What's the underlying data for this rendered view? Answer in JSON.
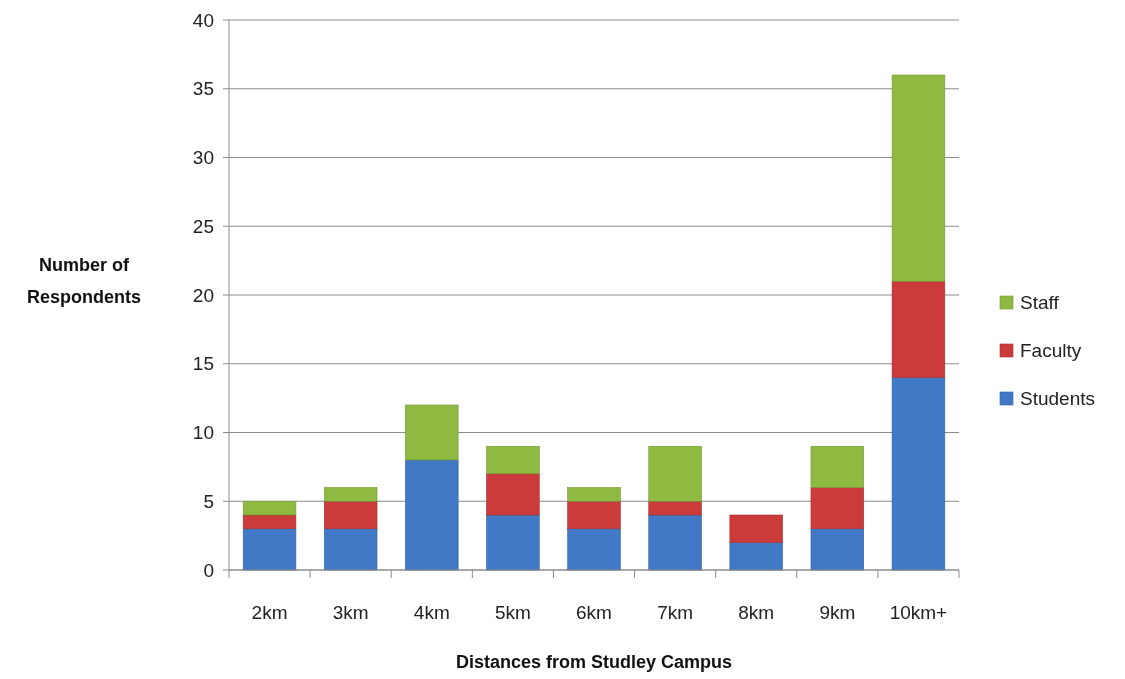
{
  "chart_data": {
    "type": "bar",
    "stacked": true,
    "xlabel": "Distances from Studley Campus",
    "ylabel": "Number of Respondents",
    "categories": [
      "2km",
      "3km",
      "4km",
      "5km",
      "6km",
      "7km",
      "8km",
      "9km",
      "10km+"
    ],
    "series": [
      {
        "name": "Students",
        "color": "#4179c6",
        "values": [
          3,
          3,
          8,
          4,
          3,
          4,
          2,
          3,
          14
        ]
      },
      {
        "name": "Faculty",
        "color": "#cc3b3b",
        "values": [
          1,
          2,
          0,
          3,
          2,
          1,
          2,
          3,
          7
        ]
      },
      {
        "name": "Staff",
        "color": "#8fba42",
        "values": [
          1,
          1,
          4,
          2,
          1,
          4,
          0,
          3,
          15
        ]
      }
    ],
    "ylim": [
      0,
      40
    ],
    "yticks": [
      0,
      5,
      10,
      15,
      20,
      25,
      30,
      35,
      40
    ],
    "grid": "y",
    "legend": "right"
  }
}
